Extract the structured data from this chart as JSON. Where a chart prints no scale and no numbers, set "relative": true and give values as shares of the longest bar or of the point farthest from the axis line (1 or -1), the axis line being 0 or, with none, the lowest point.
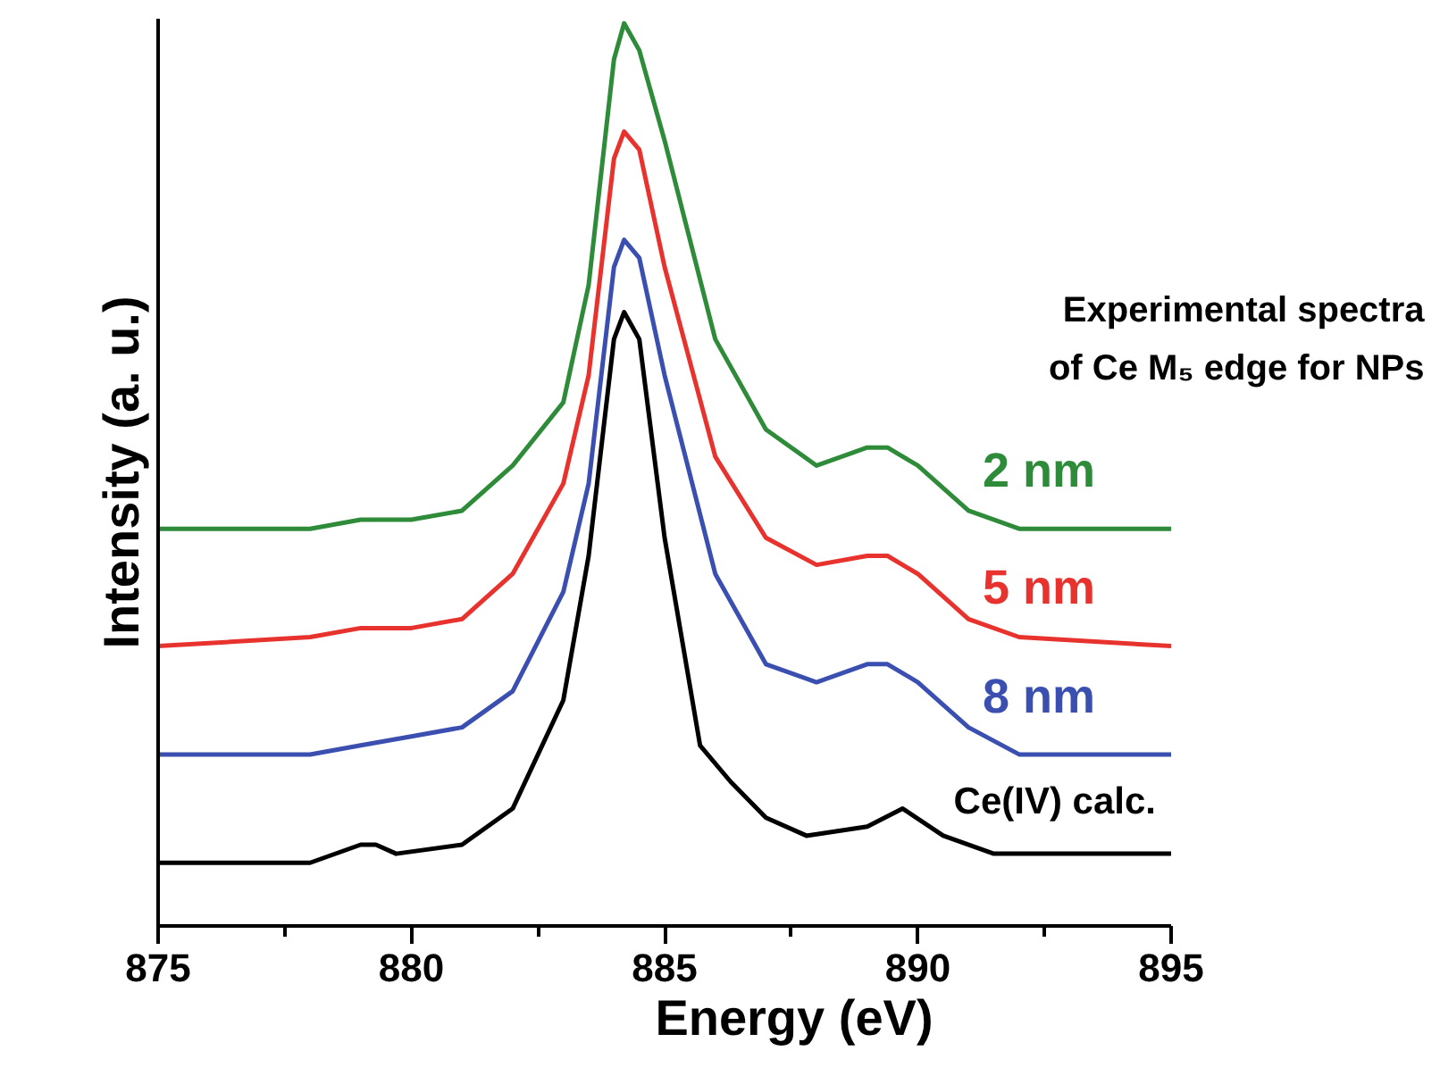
{
  "chart_data": {
    "type": "line",
    "relative": true,
    "xlabel": "Energy (eV)",
    "ylabel": "Intensity (a. u.)",
    "annotations": [
      "Experimental spectra\nof Ce M₅ edge for NPs"
    ],
    "xlim": [
      875,
      895
    ],
    "xticks": [
      875,
      {
        "value": 877.5,
        "label": null
      },
      880,
      {
        "value": 882.5,
        "label": null
      },
      885,
      {
        "value": 887.5,
        "label": null
      },
      890,
      {
        "value": 892.5,
        "label": null
      },
      895
    ],
    "grid": false,
    "marker": "none",
    "line_style": "solid",
    "series": [
      {
        "name": "2 nm",
        "color": "#2e8b3a",
        "x": [
          875,
          878,
          879,
          880,
          881,
          882,
          883,
          883.5,
          884,
          884.2,
          884.5,
          885,
          886,
          887,
          888,
          889,
          889.4,
          890,
          891,
          892,
          895
        ],
        "values": [
          0.44,
          0.44,
          0.45,
          0.45,
          0.46,
          0.51,
          0.58,
          0.71,
          0.96,
          1.0,
          0.97,
          0.87,
          0.65,
          0.55,
          0.51,
          0.53,
          0.53,
          0.51,
          0.46,
          0.44,
          0.44
        ]
      },
      {
        "name": "5 nm",
        "color": "#e8322e",
        "x": [
          875,
          878,
          879,
          880,
          881,
          882,
          883,
          883.5,
          884,
          884.2,
          884.5,
          885,
          886,
          887,
          888,
          889,
          889.4,
          890,
          891,
          892,
          895
        ],
        "values": [
          0.31,
          0.32,
          0.33,
          0.33,
          0.34,
          0.39,
          0.49,
          0.61,
          0.85,
          0.88,
          0.86,
          0.73,
          0.52,
          0.43,
          0.4,
          0.41,
          0.41,
          0.39,
          0.34,
          0.32,
          0.31
        ]
      },
      {
        "name": "8 nm",
        "color": "#3a4fb0",
        "x": [
          875,
          878,
          879,
          880,
          881,
          882,
          883,
          883.5,
          884,
          884.2,
          884.5,
          885,
          886,
          887,
          888,
          889,
          889.4,
          890,
          891,
          892,
          895
        ],
        "values": [
          0.19,
          0.19,
          0.2,
          0.21,
          0.22,
          0.26,
          0.37,
          0.49,
          0.73,
          0.76,
          0.74,
          0.61,
          0.39,
          0.29,
          0.27,
          0.29,
          0.29,
          0.27,
          0.22,
          0.19,
          0.19
        ]
      },
      {
        "name": "Ce(IV) calc.",
        "color": "#000000",
        "x": [
          875,
          878,
          879,
          879.3,
          879.7,
          881,
          882,
          883,
          883.5,
          884,
          884.2,
          884.5,
          885,
          885.7,
          886.3,
          887,
          887.8,
          889,
          889.7,
          890.5,
          891.5,
          895
        ],
        "values": [
          0.07,
          0.07,
          0.09,
          0.09,
          0.08,
          0.09,
          0.13,
          0.25,
          0.41,
          0.65,
          0.68,
          0.65,
          0.43,
          0.2,
          0.16,
          0.12,
          0.1,
          0.11,
          0.13,
          0.1,
          0.08,
          0.08
        ]
      }
    ]
  }
}
